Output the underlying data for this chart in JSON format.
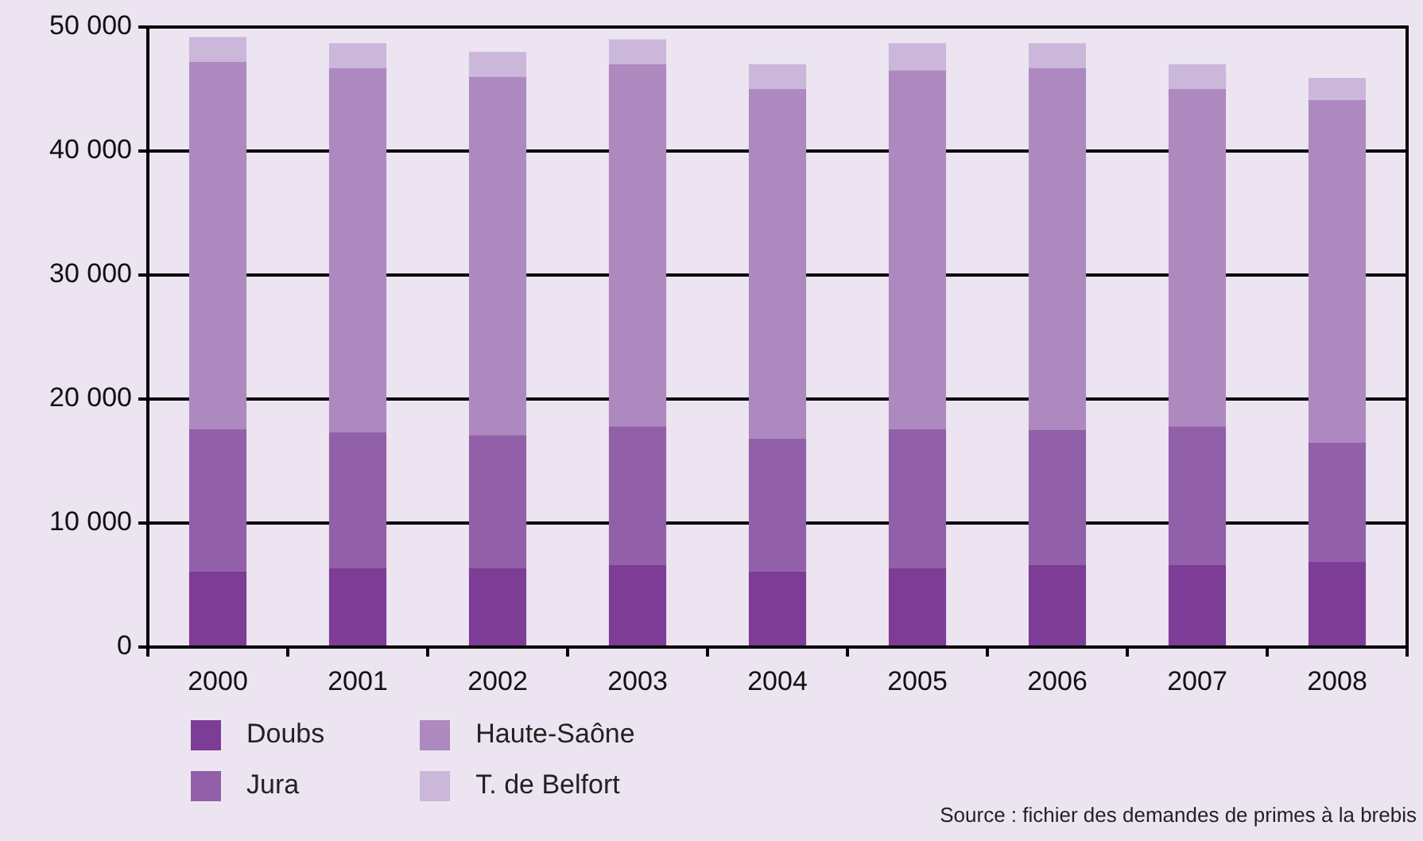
{
  "chart_data": {
    "type": "bar",
    "stacked": true,
    "categories": [
      "2000",
      "2001",
      "2002",
      "2003",
      "2004",
      "2005",
      "2006",
      "2007",
      "2008"
    ],
    "series": [
      {
        "name": "Doubs",
        "color": "#7d3c96",
        "values": [
          6100,
          6400,
          6400,
          6600,
          6100,
          6400,
          6600,
          6600,
          6900
        ]
      },
      {
        "name": "Jura",
        "color": "#9260a8",
        "values": [
          11500,
          10900,
          10700,
          11200,
          10700,
          11200,
          10900,
          11200,
          9600
        ]
      },
      {
        "name": "Haute-Saône",
        "color": "#ad89c0",
        "values": [
          29600,
          29400,
          28900,
          29200,
          28200,
          28900,
          29200,
          27200,
          27600
        ]
      },
      {
        "name": "T. de Belfort",
        "color": "#cbb7da",
        "values": [
          2000,
          2000,
          2000,
          2000,
          2000,
          2200,
          2000,
          2000,
          1800
        ]
      }
    ],
    "ylim": [
      0,
      50000
    ],
    "yticks": [
      {
        "value": 0,
        "label": "0"
      },
      {
        "value": 10000,
        "label": "10 000"
      },
      {
        "value": 20000,
        "label": "20 000"
      },
      {
        "value": 30000,
        "label": "30 000"
      },
      {
        "value": 40000,
        "label": "40 000"
      },
      {
        "value": 50000,
        "label": "50 000"
      }
    ],
    "grid": "y",
    "legend": "bottom",
    "annotations": [
      "Source : fichier des demandes de primes à la brebis"
    ]
  }
}
